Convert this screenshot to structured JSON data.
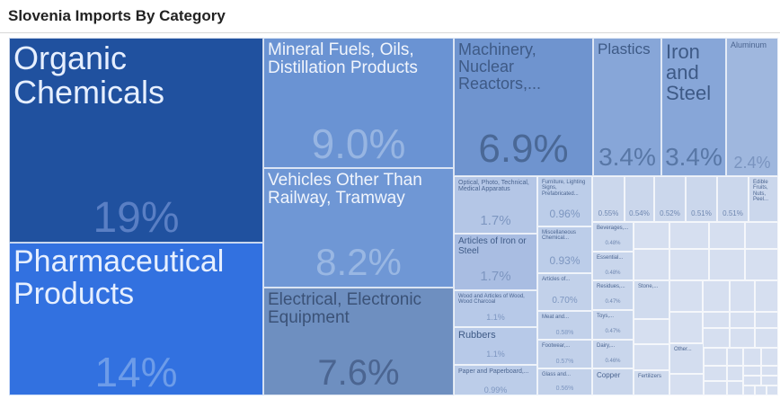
{
  "title": "Slovenia Imports By Category",
  "chart_data": {
    "type": "treemap",
    "title": "Slovenia Imports By Category",
    "value_unit": "percent of total imports",
    "items": [
      {
        "label": "Organic Chemicals",
        "value": 19,
        "value_label": "19%"
      },
      {
        "label": "Pharmaceutical Products",
        "value": 14,
        "value_label": "14%"
      },
      {
        "label": "Mineral Fuels, Oils, Distillation Products",
        "value": 9.0,
        "value_label": "9.0%"
      },
      {
        "label": "Vehicles Other Than Railway, Tramway",
        "value": 8.2,
        "value_label": "8.2%"
      },
      {
        "label": "Electrical, Electronic Equipment",
        "value": 7.6,
        "value_label": "7.6%"
      },
      {
        "label": "Machinery, Nuclear Reactors,...",
        "value": 6.9,
        "value_label": "6.9%"
      },
      {
        "label": "Plastics",
        "value": 3.4,
        "value_label": "3.4%"
      },
      {
        "label": "Iron and Steel",
        "value": 3.4,
        "value_label": "3.4%"
      },
      {
        "label": "Aluminum",
        "value": 2.4,
        "value_label": "2.4%"
      },
      {
        "label": "Optical, Photo, Technical, Medical Apparatus",
        "value": 1.7,
        "value_label": "1.7%"
      },
      {
        "label": "Articles of Iron or Steel",
        "value": 1.7,
        "value_label": "1.7%"
      },
      {
        "label": "Wood and Articles of Wood, Wood Charcoal",
        "value": 1.1,
        "value_label": "1.1%"
      },
      {
        "label": "Rubbers",
        "value": 1.1,
        "value_label": "1.1%"
      },
      {
        "label": "Paper and Paperboard,...",
        "value": 0.99,
        "value_label": "0.99%"
      },
      {
        "label": "Furniture, Lighting Signs, Prefabricated...",
        "value": 0.96,
        "value_label": "0.96%"
      },
      {
        "label": "Miscellaneous Chemical...",
        "value": 0.93,
        "value_label": "0.93%"
      },
      {
        "label": "Articles of...",
        "value": 0.7,
        "value_label": "0.70%"
      },
      {
        "label": "Meat and...",
        "value": 0.58,
        "value_label": "0.58%"
      },
      {
        "label": "Footwear,...",
        "value": 0.57,
        "value_label": "0.57%"
      },
      {
        "label": "Glass and...",
        "value": 0.56,
        "value_label": "0.56%"
      },
      {
        "label": "",
        "value": 0.55,
        "value_label": "0.55%"
      },
      {
        "label": "",
        "value": 0.54,
        "value_label": "0.54%"
      },
      {
        "label": "",
        "value": 0.52,
        "value_label": "0.52%"
      },
      {
        "label": "",
        "value": 0.51,
        "value_label": "0.51%"
      },
      {
        "label": "",
        "value": 0.51,
        "value_label": "0.51%"
      },
      {
        "label": "Edible Fruits, Nuts, Peel...",
        "value": null,
        "value_label": ""
      },
      {
        "label": "Beverages,...",
        "value": 0.48,
        "value_label": "0.48%"
      },
      {
        "label": "Essential...",
        "value": 0.48,
        "value_label": "0.48%"
      },
      {
        "label": "Residues,...",
        "value": 0.47,
        "value_label": "0.47%"
      },
      {
        "label": "Toys,...",
        "value": 0.47,
        "value_label": "0.47%"
      },
      {
        "label": "Dairy,...",
        "value": 0.46,
        "value_label": "0.46%"
      },
      {
        "label": "Copper",
        "value": null,
        "value_label": ""
      },
      {
        "label": "Stone,...",
        "value": null,
        "value_label": ""
      },
      {
        "label": "Other...",
        "value": null,
        "value_label": ""
      },
      {
        "label": "Fertilizers",
        "value": null,
        "value_label": ""
      }
    ]
  }
}
